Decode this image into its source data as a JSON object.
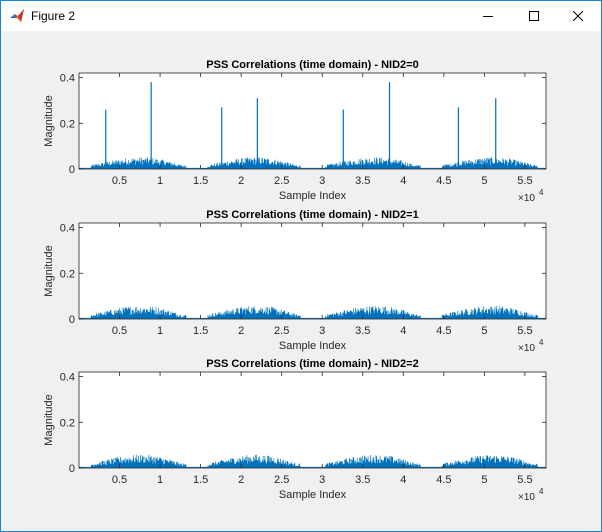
{
  "window": {
    "title": "Figure 2",
    "icon": "matlab-icon",
    "controls": [
      "minimize-icon",
      "maximize-icon",
      "close-icon"
    ]
  },
  "colors": {
    "line": "#0072BD",
    "axes": "#262626",
    "grid_bg": "#ffffff",
    "figure_bg": "#f0f0f0"
  },
  "chart_data": [
    {
      "type": "line",
      "title": "PSS Correlations (time domain) - NID2=0",
      "xlabel": "Sample Index",
      "ylabel": "Magnitude",
      "x_exponent_label": "×10",
      "x_exponent": "4",
      "xlim": [
        0,
        57600
      ],
      "ylim": [
        0,
        0.42
      ],
      "xticks": [
        5000,
        10000,
        15000,
        20000,
        25000,
        30000,
        35000,
        40000,
        45000,
        50000,
        55000
      ],
      "xtick_labels": [
        "0.5",
        "1",
        "1.5",
        "2",
        "2.5",
        "3",
        "3.5",
        "4",
        "4.5",
        "5",
        "5.5"
      ],
      "yticks": [
        0,
        0.2,
        0.4
      ],
      "ytick_labels": [
        "0",
        "0.2",
        "0.4"
      ],
      "bursts": [
        [
          1500,
          13200
        ],
        [
          15900,
          27300
        ],
        [
          30400,
          42100
        ],
        [
          44800,
          56600
        ]
      ],
      "noise_level": 0.04,
      "peaks": [
        [
          3300,
          0.26
        ],
        [
          8900,
          0.38
        ],
        [
          17600,
          0.27
        ],
        [
          22000,
          0.31
        ],
        [
          32600,
          0.26
        ],
        [
          38300,
          0.38
        ],
        [
          46800,
          0.27
        ],
        [
          51400,
          0.31
        ]
      ]
    },
    {
      "type": "line",
      "title": "PSS Correlations (time domain) - NID2=1",
      "xlabel": "Sample Index",
      "ylabel": "Magnitude",
      "x_exponent_label": "×10",
      "x_exponent": "4",
      "xlim": [
        0,
        57600
      ],
      "ylim": [
        0,
        0.42
      ],
      "xticks": [
        5000,
        10000,
        15000,
        20000,
        25000,
        30000,
        35000,
        40000,
        45000,
        50000,
        55000
      ],
      "xtick_labels": [
        "0.5",
        "1",
        "1.5",
        "2",
        "2.5",
        "3",
        "3.5",
        "4",
        "4.5",
        "5",
        "5.5"
      ],
      "yticks": [
        0,
        0.2,
        0.4
      ],
      "ytick_labels": [
        "0",
        "0.2",
        "0.4"
      ],
      "bursts": [
        [
          1500,
          13200
        ],
        [
          15900,
          27300
        ],
        [
          30400,
          42100
        ],
        [
          44800,
          56600
        ]
      ],
      "noise_level": 0.045,
      "peaks": []
    },
    {
      "type": "line",
      "title": "PSS Correlations (time domain) - NID2=2",
      "xlabel": "Sample Index",
      "ylabel": "Magnitude",
      "x_exponent_label": "×10",
      "x_exponent": "4",
      "xlim": [
        0,
        57600
      ],
      "ylim": [
        0,
        0.42
      ],
      "xticks": [
        5000,
        10000,
        15000,
        20000,
        25000,
        30000,
        35000,
        40000,
        45000,
        50000,
        55000
      ],
      "xtick_labels": [
        "0.5",
        "1",
        "1.5",
        "2",
        "2.5",
        "3",
        "3.5",
        "4",
        "4.5",
        "5",
        "5.5"
      ],
      "yticks": [
        0,
        0.2,
        0.4
      ],
      "ytick_labels": [
        "0",
        "0.2",
        "0.4"
      ],
      "bursts": [
        [
          1500,
          13200
        ],
        [
          15900,
          27300
        ],
        [
          30400,
          42100
        ],
        [
          44800,
          56600
        ]
      ],
      "noise_level": 0.045,
      "peaks": []
    }
  ]
}
